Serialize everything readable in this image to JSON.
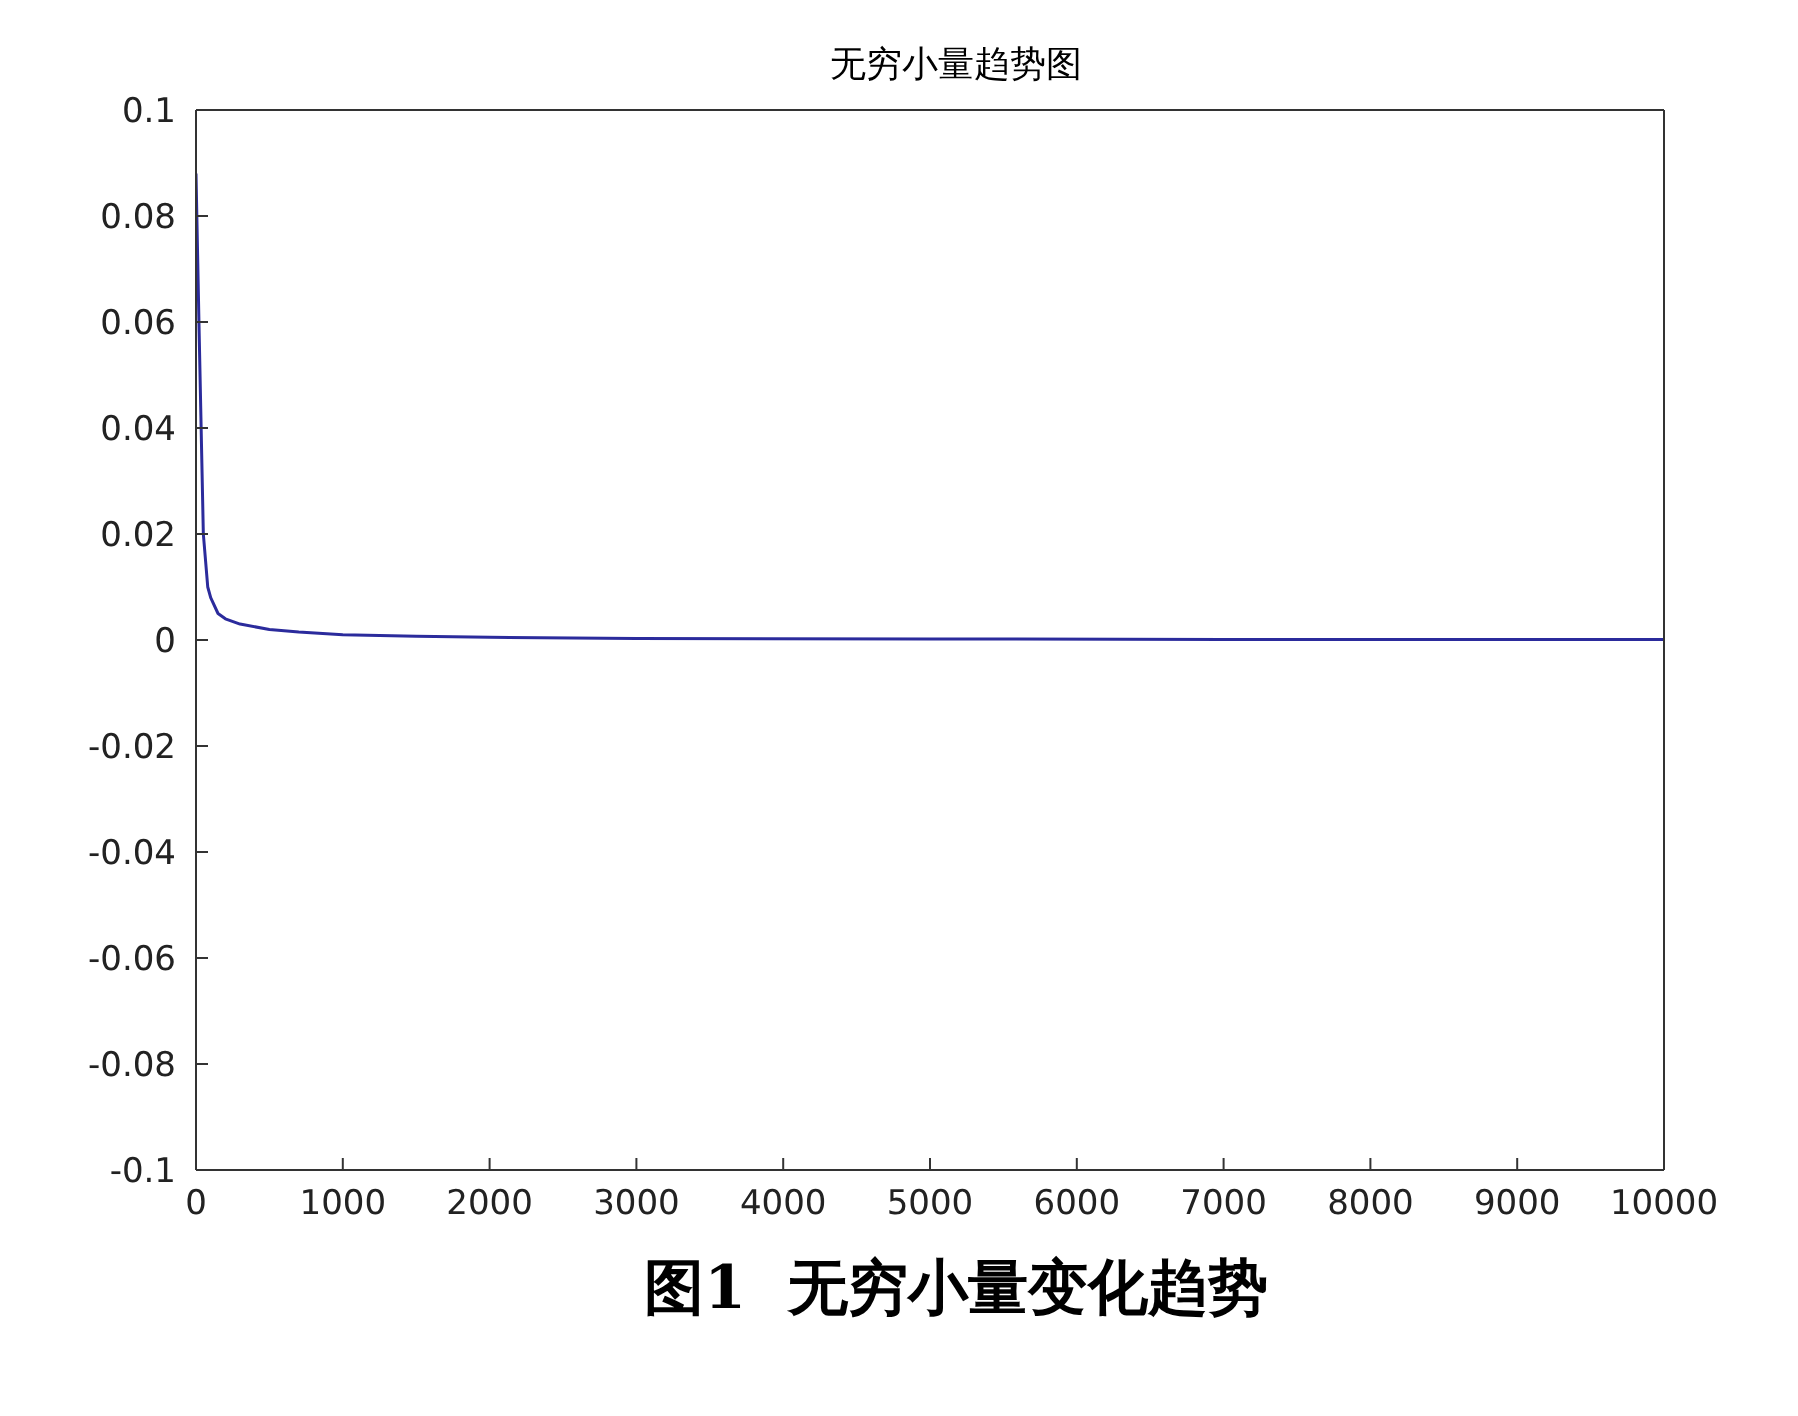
{
  "chart_data": {
    "type": "line",
    "title": "无穷小量趋势图",
    "x": [
      0,
      20,
      50,
      80,
      100,
      150,
      200,
      300,
      500,
      700,
      1000,
      1500,
      2000,
      3000,
      5000,
      7000,
      10000
    ],
    "series": [
      {
        "color": "#2b2b9c",
        "values": [
          0.088,
          0.06,
          0.02,
          0.01,
          0.008,
          0.005,
          0.004,
          0.003,
          0.002,
          0.0015,
          0.001,
          0.0007,
          0.0005,
          0.0003,
          0.0002,
          0.0001,
          0.0001
        ]
      }
    ],
    "xlim": [
      0,
      10000
    ],
    "xticks": [
      0,
      1000,
      2000,
      3000,
      4000,
      5000,
      6000,
      7000,
      8000,
      9000,
      10000
    ],
    "ylim": [
      -0.1,
      0.1
    ],
    "yticks": [
      -0.1,
      -0.08,
      -0.06,
      -0.04,
      -0.02,
      0,
      0.02,
      0.04,
      0.06,
      0.08,
      0.1
    ],
    "grid": false,
    "legend": false,
    "marker": "none",
    "line_style": "solid",
    "annotations": [
      "图1  无穷小量变化趋势"
    ]
  }
}
